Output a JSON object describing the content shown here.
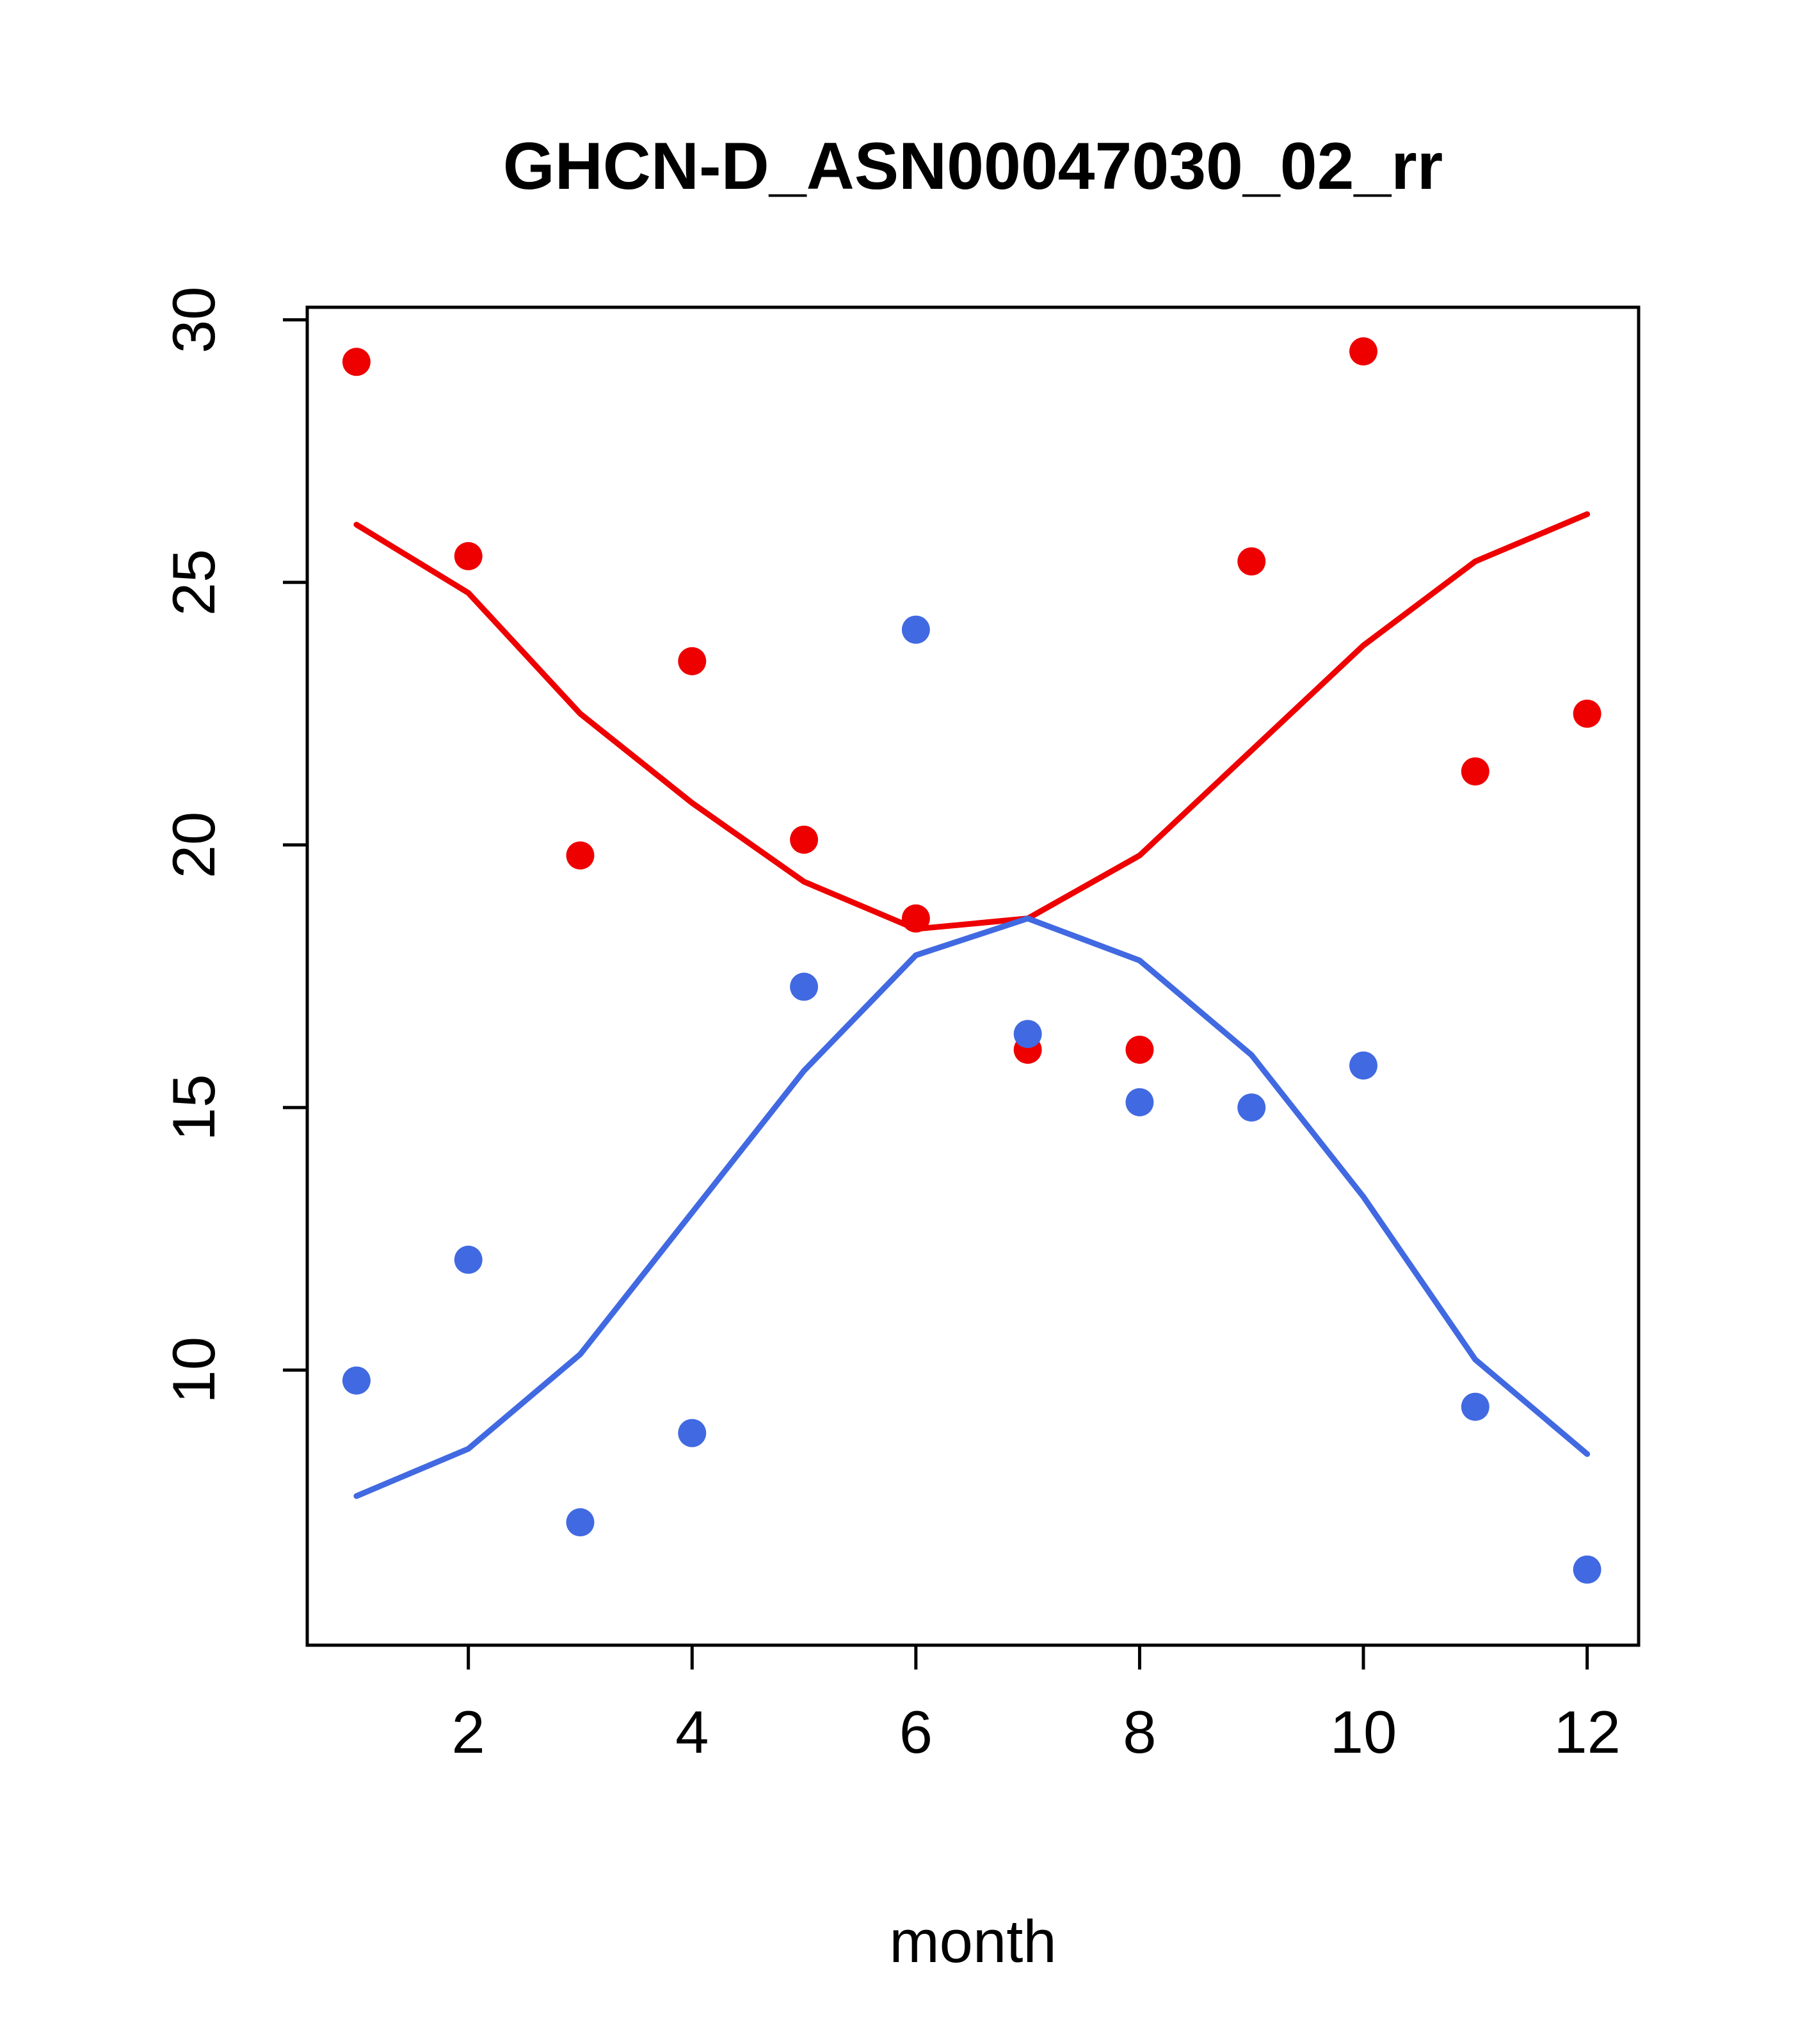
{
  "chart_data": {
    "type": "scatter",
    "title": "GHCN-D_ASN00047030_02_rr",
    "xlabel": "month",
    "ylabel": "",
    "x": [
      1,
      2,
      3,
      4,
      5,
      6,
      7,
      8,
      9,
      10,
      11,
      12
    ],
    "xlim": [
      0.56,
      12.46
    ],
    "ylim": [
      4.76,
      30.24
    ],
    "xticks": [
      2,
      4,
      6,
      8,
      10,
      12
    ],
    "yticks": [
      10,
      15,
      20,
      25,
      30
    ],
    "grid": false,
    "legend": "none",
    "colors": {
      "red": "#ee0000",
      "blue": "#4169e1",
      "axis": "#000000"
    },
    "series": [
      {
        "name": "red-points",
        "type": "points",
        "color": "#ee0000",
        "values": [
          29.2,
          25.5,
          19.8,
          23.5,
          20.1,
          18.6,
          16.1,
          16.1,
          25.4,
          29.4,
          21.4,
          22.5
        ]
      },
      {
        "name": "blue-points",
        "type": "points",
        "color": "#4169e1",
        "values": [
          9.8,
          12.1,
          7.1,
          8.8,
          17.3,
          24.1,
          16.4,
          15.1,
          15.0,
          15.8,
          9.3,
          6.2
        ]
      },
      {
        "name": "red-line",
        "type": "line",
        "color": "#ee0000",
        "values": [
          26.1,
          24.8,
          22.5,
          20.8,
          19.3,
          18.4,
          18.6,
          19.8,
          21.8,
          23.8,
          25.4,
          26.3
        ]
      },
      {
        "name": "blue-line",
        "type": "line",
        "color": "#4169e1",
        "values": [
          7.6,
          8.5,
          10.3,
          13.0,
          15.7,
          17.9,
          18.6,
          17.8,
          16.0,
          13.3,
          10.2,
          8.4
        ]
      }
    ]
  }
}
